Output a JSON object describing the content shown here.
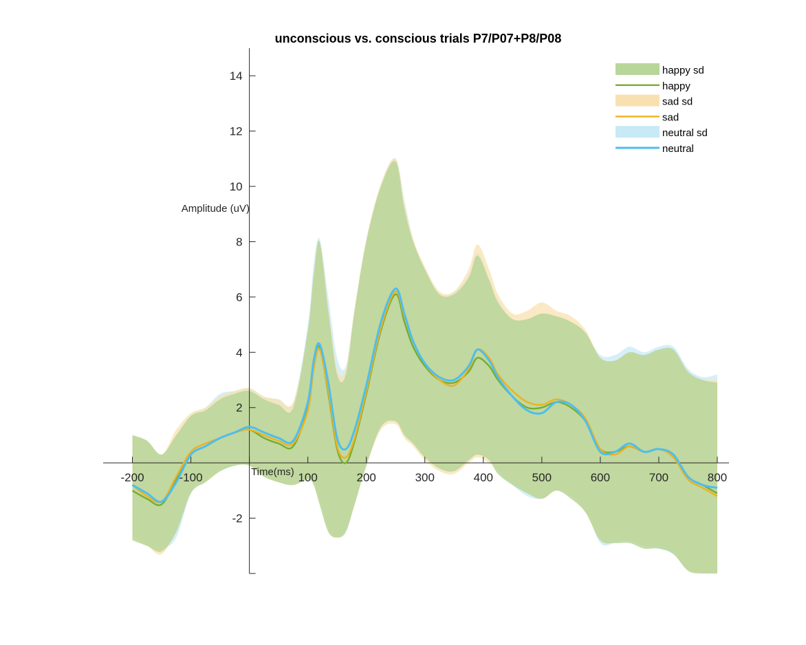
{
  "chart_data": {
    "type": "line",
    "title": "unconscious vs. conscious trials P7/P07+P8/P08",
    "xlabel": "Time(ms)",
    "ylabel": "Amplitude (uV)",
    "xlim": [
      -250,
      820
    ],
    "ylim": [
      -4,
      15
    ],
    "xticks": [
      -200,
      -100,
      0,
      100,
      200,
      300,
      400,
      500,
      600,
      700,
      800
    ],
    "xtick_labels": [
      "-200",
      "-100",
      "",
      "100",
      "200",
      "300",
      "400",
      "500",
      "600",
      "700",
      "800"
    ],
    "yticks": [
      -2,
      2,
      4,
      6,
      8,
      10,
      12,
      14
    ],
    "ytick_labels": [
      "-2",
      "2",
      "4",
      "6",
      "8",
      "10",
      "12",
      "14"
    ],
    "legend_position": "top-right",
    "x": [
      -200,
      -175,
      -150,
      -125,
      -100,
      -75,
      -50,
      -25,
      0,
      25,
      50,
      75,
      100,
      110,
      120,
      135,
      150,
      165,
      180,
      200,
      225,
      250,
      265,
      280,
      300,
      325,
      350,
      375,
      390,
      410,
      425,
      450,
      475,
      500,
      525,
      550,
      575,
      600,
      625,
      650,
      675,
      700,
      725,
      750,
      775,
      800
    ],
    "series": [
      {
        "name": "happy",
        "sd_name": "happy sd",
        "color": "#77AC30",
        "sd_color": "#b8d69a",
        "mean": [
          -1.0,
          -1.3,
          -1.5,
          -0.6,
          0.3,
          0.6,
          0.9,
          1.1,
          1.2,
          0.9,
          0.7,
          0.6,
          2.0,
          3.5,
          4.2,
          2.5,
          0.5,
          0.0,
          0.8,
          2.5,
          4.8,
          6.1,
          5.1,
          4.2,
          3.5,
          3.0,
          2.9,
          3.3,
          3.8,
          3.5,
          3.0,
          2.4,
          2.0,
          2.0,
          2.2,
          2.0,
          1.5,
          0.5,
          0.4,
          0.6,
          0.4,
          0.5,
          0.3,
          -0.5,
          -0.8,
          -1.1
        ],
        "upper": [
          1.0,
          0.8,
          0.3,
          1.0,
          1.7,
          1.9,
          2.3,
          2.5,
          2.6,
          2.3,
          2.1,
          2.0,
          4.8,
          6.8,
          8.0,
          5.5,
          3.2,
          3.2,
          5.5,
          8.0,
          10.0,
          10.9,
          9.2,
          8.0,
          7.0,
          6.1,
          6.1,
          6.7,
          7.5,
          6.6,
          5.8,
          5.2,
          5.2,
          5.4,
          5.3,
          5.1,
          4.7,
          3.8,
          3.7,
          4.0,
          3.9,
          4.1,
          4.1,
          3.3,
          3.0,
          2.9
        ],
        "lower": [
          -2.8,
          -3.0,
          -3.2,
          -2.5,
          -1.1,
          -0.7,
          -0.3,
          -0.1,
          -0.1,
          -0.5,
          -0.7,
          -0.8,
          -0.6,
          -0.8,
          -1.5,
          -2.5,
          -2.7,
          -2.5,
          -1.5,
          -0.1,
          1.3,
          1.5,
          1.0,
          0.7,
          0.2,
          -0.2,
          -0.3,
          0.1,
          0.3,
          0.1,
          -0.4,
          -0.8,
          -1.1,
          -1.3,
          -1.0,
          -1.3,
          -1.8,
          -2.8,
          -2.9,
          -2.9,
          -3.1,
          -3.1,
          -3.3,
          -3.9,
          -4.0,
          -4.0
        ]
      },
      {
        "name": "sad",
        "sd_name": "sad sd",
        "color": "#EDB120",
        "sd_color": "#f8e1b0",
        "mean": [
          -0.8,
          -1.2,
          -1.4,
          -0.5,
          0.4,
          0.7,
          0.9,
          1.1,
          1.2,
          1.0,
          0.8,
          0.7,
          1.9,
          3.4,
          4.1,
          2.6,
          0.6,
          0.2,
          0.9,
          2.6,
          4.9,
          6.2,
          5.3,
          4.4,
          3.6,
          3.0,
          2.8,
          3.4,
          4.1,
          3.8,
          3.2,
          2.6,
          2.2,
          2.1,
          2.3,
          2.1,
          1.6,
          0.5,
          0.3,
          0.6,
          0.4,
          0.5,
          0.2,
          -0.6,
          -0.9,
          -1.2
        ],
        "upper": [
          1.0,
          0.8,
          0.3,
          1.2,
          1.8,
          2.0,
          2.4,
          2.6,
          2.7,
          2.4,
          2.3,
          2.2,
          4.7,
          6.7,
          8.0,
          5.6,
          3.4,
          3.4,
          5.6,
          8.1,
          10.1,
          11.0,
          9.4,
          8.1,
          7.1,
          6.2,
          6.2,
          7.0,
          7.9,
          7.0,
          6.1,
          5.4,
          5.5,
          5.8,
          5.5,
          5.3,
          4.8,
          3.8,
          3.7,
          4.0,
          3.8,
          4.0,
          4.0,
          3.2,
          3.0,
          3.0
        ],
        "lower": [
          -2.7,
          -3.0,
          -3.3,
          -2.4,
          -1.0,
          -0.7,
          -0.3,
          0.0,
          -0.1,
          -0.5,
          -0.7,
          -0.8,
          -0.6,
          -0.8,
          -1.4,
          -2.4,
          -2.7,
          -2.4,
          -1.5,
          -0.1,
          1.2,
          1.4,
          0.9,
          0.6,
          0.1,
          -0.3,
          -0.4,
          0.0,
          0.2,
          0.0,
          -0.3,
          -0.7,
          -1.0,
          -1.3,
          -1.0,
          -1.2,
          -1.8,
          -2.8,
          -2.8,
          -2.8,
          -3.0,
          -3.0,
          -3.2,
          -3.9,
          -4.0,
          -4.0
        ]
      },
      {
        "name": "neutral",
        "sd_name": "neutral sd",
        "color": "#4DBEEE",
        "sd_color": "#c8e9f6",
        "mean": [
          -0.8,
          -1.1,
          -1.4,
          -0.7,
          0.3,
          0.6,
          0.9,
          1.1,
          1.3,
          1.1,
          0.9,
          0.8,
          2.2,
          3.7,
          4.3,
          2.9,
          0.9,
          0.5,
          1.2,
          2.8,
          5.1,
          6.3,
          5.4,
          4.4,
          3.6,
          3.1,
          3.0,
          3.5,
          4.1,
          3.7,
          3.1,
          2.4,
          1.9,
          1.8,
          2.2,
          2.1,
          1.5,
          0.4,
          0.4,
          0.7,
          0.4,
          0.5,
          0.3,
          -0.5,
          -0.8,
          -0.9
        ],
        "upper": [
          1.0,
          0.8,
          0.3,
          1.0,
          1.7,
          2.0,
          2.5,
          2.6,
          2.7,
          2.4,
          2.3,
          2.2,
          5.0,
          7.2,
          8.1,
          6.0,
          3.8,
          3.5,
          5.6,
          8.1,
          10.1,
          11.0,
          9.5,
          8.1,
          7.0,
          6.1,
          6.2,
          6.8,
          7.6,
          6.7,
          5.9,
          5.2,
          5.2,
          5.4,
          5.3,
          5.1,
          4.7,
          3.9,
          3.9,
          4.2,
          4.0,
          4.2,
          4.2,
          3.4,
          3.1,
          3.2
        ],
        "lower": [
          -2.6,
          -2.9,
          -3.1,
          -2.7,
          -1.1,
          -0.6,
          -0.3,
          -0.1,
          0.0,
          -0.4,
          -0.7,
          -0.8,
          -0.5,
          -0.7,
          -1.3,
          -2.2,
          -2.6,
          -2.4,
          -1.4,
          -0.1,
          1.4,
          1.5,
          1.1,
          0.7,
          0.2,
          -0.2,
          -0.3,
          0.1,
          0.3,
          0.1,
          -0.3,
          -0.8,
          -1.2,
          -1.3,
          -1.0,
          -1.2,
          -1.7,
          -2.9,
          -2.9,
          -2.8,
          -3.0,
          -3.1,
          -3.3,
          -3.9,
          -4.0,
          -4.0
        ]
      }
    ]
  }
}
